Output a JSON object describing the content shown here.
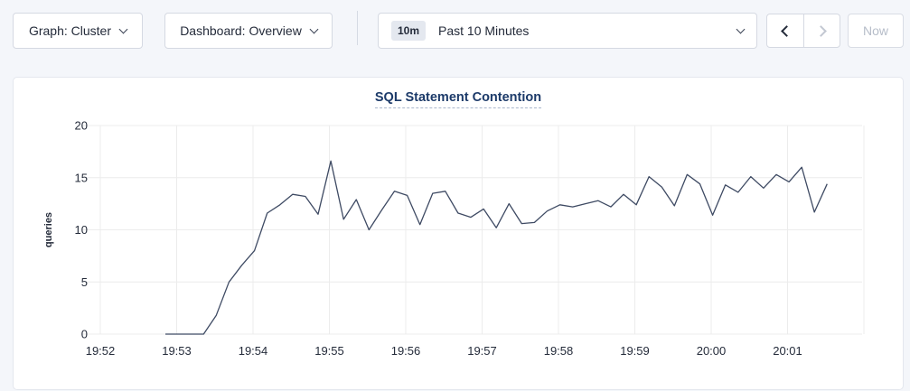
{
  "topbar": {
    "graph_dropdown": {
      "label": "Graph: Cluster"
    },
    "dashboard_dropdown": {
      "label": "Dashboard: Overview"
    },
    "time_range_dropdown": {
      "badge": "10m",
      "label": "Past 10 Minutes"
    },
    "prev_button": {
      "disabled": false
    },
    "next_button": {
      "disabled": true
    },
    "now_button": {
      "label": "Now",
      "disabled": true
    }
  },
  "chart": {
    "title": "SQL Statement Contention"
  },
  "chart_data": {
    "type": "line",
    "title": "SQL Statement Contention",
    "xlabel": "",
    "ylabel": "queries",
    "ylim": [
      0,
      20
    ],
    "yticks": [
      0,
      5,
      10,
      15,
      20
    ],
    "xticks": [
      "19:52",
      "19:53",
      "19:54",
      "19:55",
      "19:56",
      "19:57",
      "19:58",
      "19:59",
      "20:00",
      "20:01"
    ],
    "grid": true,
    "legend": "none",
    "line_color": "#3e4a63",
    "series": [
      {
        "name": "SQL Statement Contention",
        "unit": "queries",
        "start_time": "19:52:50",
        "interval_seconds": 10,
        "values": [
          0,
          0,
          0,
          0,
          1.8,
          5,
          6.6,
          8,
          11.6,
          12.4,
          13.4,
          13.2,
          11.5,
          16.6,
          11,
          12.9,
          10,
          11.9,
          13.7,
          13.3,
          10.5,
          13.5,
          13.7,
          11.6,
          11.2,
          12,
          10.2,
          12.5,
          10.6,
          10.7,
          11.8,
          12.4,
          12.2,
          12.5,
          12.8,
          12.2,
          13.4,
          12.4,
          15.1,
          14.1,
          12.3,
          15.3,
          14.4,
          11.4,
          14.3,
          13.6,
          15.1,
          14,
          15.3,
          14.6,
          16,
          11.7,
          14.4
        ]
      }
    ]
  },
  "colors": {
    "page_bg": "#f4f6fa",
    "panel_bg": "#ffffff",
    "title_color": "#1c3a69",
    "line_color": "#3e4a63",
    "grid_color": "#ececec",
    "tick_label_color": "#242b3a"
  }
}
